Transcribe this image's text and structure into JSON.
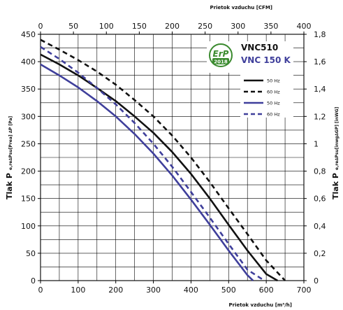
{
  "chart_data": {
    "type": "line",
    "model_line1": "VNC510",
    "model_line2": "VNC 150 K",
    "badge": {
      "text": "ErP",
      "year": "2018"
    },
    "xlabel_bottom": "Prietok vzduchu [m³/h]",
    "xlabel_top": "Prietok vzduchu [CFM]",
    "ylabel_left_main": "Tlak P",
    "ylabel_left_sub": "e,re∆Psu[Prea] ∆P [Pa]",
    "ylabel_right_main": "Tlak P",
    "ylabel_right_sub": "e,re∆Psu[inwg∆GP] [inWG]",
    "xlim": [
      0,
      700
    ],
    "ylim": [
      0,
      450
    ],
    "xlim_top": [
      0,
      400
    ],
    "ylim_right": [
      0,
      1.8
    ],
    "x_ticks": [
      "0",
      "100",
      "200",
      "300",
      "400",
      "500",
      "600",
      "700"
    ],
    "y_ticks": [
      "0",
      "50",
      "100",
      "150",
      "200",
      "250",
      "300",
      "350",
      "400",
      "450"
    ],
    "x_top_ticks": [
      "0",
      "50",
      "100",
      "150",
      "200",
      "250",
      "300",
      "350",
      "400"
    ],
    "y_right_ticks": [
      "0",
      "0,2",
      "0,4",
      "0,6",
      "0,8",
      "1",
      "1,2",
      "1,4",
      "1,6",
      "1,8"
    ],
    "grid": true,
    "legend_position": "top-right",
    "series": [
      {
        "name": "50 Hz",
        "color": "#111111",
        "dash": "solid",
        "x": [
          0,
          50,
          100,
          150,
          200,
          250,
          300,
          350,
          400,
          450,
          500,
          550,
          600,
          630
        ],
        "y": [
          413,
          395,
          375,
          352,
          328,
          300,
          270,
          235,
          195,
          150,
          102,
          55,
          12,
          0
        ]
      },
      {
        "name": "60 Hz",
        "color": "#111111",
        "dash": "dashed",
        "x": [
          0,
          50,
          100,
          150,
          200,
          250,
          300,
          350,
          400,
          450,
          500,
          550,
          600,
          650
        ],
        "y": [
          440,
          422,
          403,
          382,
          358,
          330,
          300,
          265,
          225,
          180,
          132,
          85,
          37,
          0
        ]
      },
      {
        "name": "50 Hz",
        "color": "#3f3f9b",
        "dash": "solid",
        "x": [
          0,
          50,
          100,
          150,
          200,
          250,
          300,
          350,
          400,
          450,
          500,
          550,
          565
        ],
        "y": [
          395,
          375,
          353,
          328,
          300,
          268,
          232,
          192,
          148,
          102,
          55,
          10,
          0
        ]
      },
      {
        "name": "60 Hz",
        "color": "#3f3f9b",
        "dash": "dashed",
        "x": [
          0,
          50,
          100,
          150,
          200,
          250,
          300,
          350,
          400,
          450,
          500,
          550,
          595
        ],
        "y": [
          427,
          405,
          380,
          352,
          322,
          288,
          250,
          208,
          162,
          115,
          67,
          20,
          0
        ]
      }
    ]
  }
}
